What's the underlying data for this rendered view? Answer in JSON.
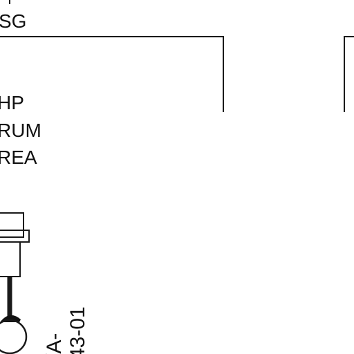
{
  "labels": {
    "top_partial": "SG",
    "line1": "HP",
    "line2": "RUM",
    "line3": "REA",
    "vertical_code_1": "/A-",
    "vertical_code_2": "43-01"
  }
}
